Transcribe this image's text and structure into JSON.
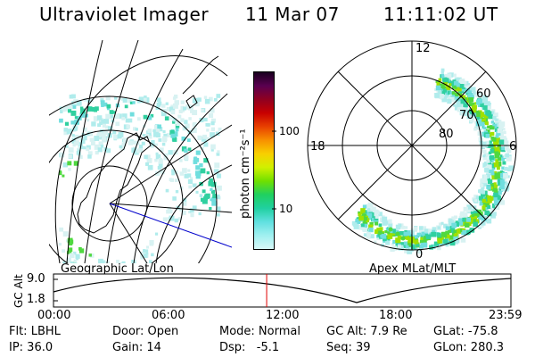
{
  "header": {
    "instrument": "Ultraviolet Imager",
    "date": "11 Mar 07",
    "time": "11:11:02 UT"
  },
  "geo_panel": {
    "label": "Geographic Lat/Lon"
  },
  "apex_panel": {
    "label": "Apex MLat/MLT",
    "mlt_labels": {
      "top": "12",
      "left": "18",
      "right": "6",
      "bottom": "0"
    },
    "mlat_labels": [
      "60",
      "70",
      "80"
    ]
  },
  "colorbar": {
    "unit_label": "photon cm⁻²s⁻¹",
    "ticks": [
      "100",
      "10"
    ],
    "colors": [
      "#1a0020",
      "#5a0050",
      "#900020",
      "#c80000",
      "#e84000",
      "#f89000",
      "#f8d000",
      "#d0f000",
      "#70e000",
      "#20d060",
      "#20d0a0",
      "#60e0e0",
      "#a0f0f0",
      "#d8f8f8"
    ]
  },
  "altitude_strip": {
    "axis_label": "GC Alt",
    "y_ticks": [
      "9.0",
      "1.8"
    ],
    "x_ticks": [
      "00:00",
      "06:00",
      "12:00",
      "18:00",
      "23:59"
    ],
    "current_time_fraction": 0.466
  },
  "info": {
    "row1": {
      "flt": "Flt: LBHL",
      "door": "Door: Open",
      "mode": "Mode: Normal",
      "gc_alt": "GC Alt: 7.9 Re",
      "glat": "GLat: -75.8"
    },
    "row2": {
      "ip": "IP: 36.0",
      "gain": "Gain: 14",
      "dsp": "Dsp:   -5.1",
      "seq": "Seq: 39",
      "glon": "GLon: 280.3"
    }
  },
  "style": {
    "aurora_colors": [
      "#d8f2f2",
      "#b0ecec",
      "#70dede",
      "#30d0a0",
      "#50d840",
      "#a0e000"
    ],
    "current_time_color": "#e00000",
    "los_line_color": "#0000cc"
  }
}
